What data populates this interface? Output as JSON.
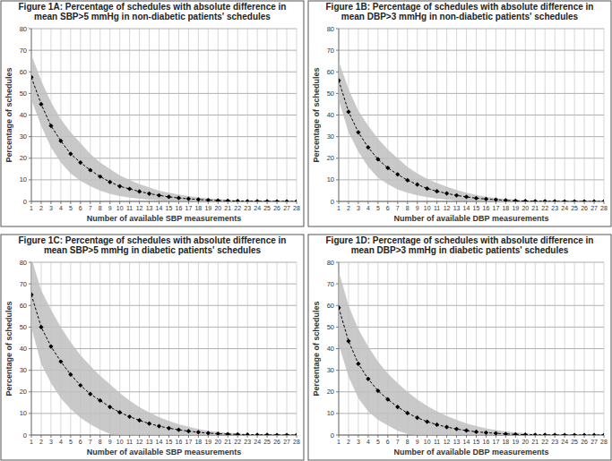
{
  "chart_data": [
    {
      "type": "line",
      "title": "Figure 1A: Percentage of schedules with absolute difference in mean SBP>5 mmHg in non-diabetic patients' schedules",
      "x_label": "Number of available SBP measurements",
      "y_label": "Percentage of schedules",
      "x": [
        1,
        2,
        3,
        4,
        5,
        6,
        7,
        8,
        9,
        10,
        11,
        12,
        13,
        14,
        15,
        16,
        17,
        18,
        19,
        20,
        21,
        22,
        23,
        24,
        25,
        26,
        27,
        28
      ],
      "xlim": [
        1,
        28
      ],
      "xticks": [
        1,
        2,
        3,
        4,
        5,
        6,
        7,
        8,
        9,
        10,
        11,
        12,
        13,
        14,
        15,
        16,
        17,
        18,
        19,
        20,
        21,
        22,
        23,
        24,
        25,
        26,
        27,
        28
      ],
      "ylim": [
        0,
        80
      ],
      "yticks": [
        0,
        10,
        20,
        30,
        40,
        50,
        60,
        70,
        80
      ],
      "grid": true,
      "series": [
        {
          "color": "#000000",
          "marker": "diamond",
          "line_style": "dashed",
          "values": [
            57.5,
            45,
            35,
            28,
            22,
            18,
            14.5,
            11.5,
            9,
            7,
            5.8,
            4.6,
            3.6,
            2.8,
            2.1,
            1.6,
            1.2,
            0.9,
            0.6,
            0.4,
            0.3,
            0.2,
            0.1,
            0.1,
            0.05,
            0,
            0,
            0
          ],
          "upper": [
            68,
            56,
            46,
            38,
            32,
            27,
            22,
            18,
            15,
            12,
            10,
            8,
            6.5,
            5,
            4,
            3.2,
            2.5,
            1.9,
            1.4,
            1,
            0.7,
            0.5,
            0.3,
            0.2,
            0.1,
            0.1,
            0,
            0
          ],
          "lower": [
            47,
            35,
            25,
            18,
            13,
            9.5,
            7,
            5,
            3.5,
            2.5,
            1.8,
            1.2,
            0.8,
            0.5,
            0.3,
            0.2,
            0.1,
            0.1,
            0,
            0,
            0,
            0,
            0,
            0,
            0,
            0,
            0,
            0
          ]
        }
      ]
    },
    {
      "type": "line",
      "title": "Figure 1B: Percentage of schedules with absolute difference in mean DBP>3 mmHg in non-diabetic patients' schedules",
      "x_label": "Number of available DBP measurements",
      "y_label": "Percentage of schedules",
      "x": [
        1,
        2,
        3,
        4,
        5,
        6,
        7,
        8,
        9,
        10,
        11,
        12,
        13,
        14,
        15,
        16,
        17,
        18,
        19,
        20,
        21,
        22,
        23,
        24,
        25,
        26,
        27,
        28
      ],
      "xlim": [
        1,
        28
      ],
      "xticks": [
        1,
        2,
        3,
        4,
        5,
        6,
        7,
        8,
        9,
        10,
        11,
        12,
        13,
        14,
        15,
        16,
        17,
        18,
        19,
        20,
        21,
        22,
        23,
        24,
        25,
        26,
        27,
        28
      ],
      "ylim": [
        0,
        80
      ],
      "yticks": [
        0,
        10,
        20,
        30,
        40,
        50,
        60,
        70,
        80
      ],
      "grid": true,
      "series": [
        {
          "color": "#000000",
          "marker": "diamond",
          "line_style": "dashed",
          "values": [
            56,
            41.5,
            32,
            25,
            19.5,
            15.5,
            12.5,
            9.8,
            7.8,
            6,
            4.7,
            3.7,
            2.8,
            2.1,
            1.5,
            1.1,
            0.8,
            0.5,
            0.3,
            0.2,
            0.1,
            0.1,
            0.05,
            0,
            0,
            0,
            0,
            0
          ],
          "upper": [
            65,
            52,
            42,
            35,
            29,
            24,
            20,
            16,
            13,
            10.5,
            8.5,
            6.8,
            5.3,
            4,
            3,
            2.2,
            1.6,
            1.1,
            0.7,
            0.4,
            0.2,
            0.1,
            0.1,
            0,
            0,
            0,
            0,
            0
          ],
          "lower": [
            47,
            32,
            23,
            16,
            11,
            8,
            5.5,
            4,
            2.8,
            2,
            1.3,
            0.8,
            0.5,
            0.3,
            0.2,
            0.1,
            0,
            0,
            0,
            0,
            0,
            0,
            0,
            0,
            0,
            0,
            0,
            0
          ]
        }
      ]
    },
    {
      "type": "line",
      "title": "Figure 1C: Percentage of schedules with absolute difference in mean SBP>5 mmHg in diabetic patients' schedules",
      "x_label": "Number of available SBP measurements",
      "y_label": "Percentage of schedules",
      "x": [
        1,
        2,
        3,
        4,
        5,
        6,
        7,
        8,
        9,
        10,
        11,
        12,
        13,
        14,
        15,
        16,
        17,
        18,
        19,
        20,
        21,
        22,
        23,
        24,
        25,
        26,
        27,
        28
      ],
      "xlim": [
        1,
        28
      ],
      "xticks": [
        1,
        2,
        3,
        4,
        5,
        6,
        7,
        8,
        9,
        10,
        11,
        12,
        13,
        14,
        15,
        16,
        17,
        18,
        19,
        20,
        21,
        22,
        23,
        24,
        25,
        26,
        27,
        28
      ],
      "ylim": [
        0,
        80
      ],
      "yticks": [
        0,
        10,
        20,
        30,
        40,
        50,
        60,
        70,
        80
      ],
      "grid": true,
      "series": [
        {
          "color": "#000000",
          "marker": "diamond",
          "line_style": "dashed",
          "values": [
            65,
            50,
            41,
            34,
            28,
            23,
            19,
            16,
            13,
            10.5,
            8.5,
            6.8,
            5.3,
            4.1,
            3.2,
            2.4,
            1.8,
            1.3,
            0.9,
            0.6,
            0.4,
            0.3,
            0.2,
            0.1,
            0.1,
            0,
            0,
            0
          ],
          "upper": [
            82,
            67,
            58,
            50,
            43,
            37,
            32,
            27.5,
            23.5,
            19.5,
            16,
            13,
            10.5,
            8.3,
            6.5,
            5,
            3.8,
            2.8,
            2,
            1.4,
            1,
            0.7,
            0.4,
            0.3,
            0.2,
            0.1,
            0,
            0
          ],
          "lower": [
            50,
            33,
            24,
            17,
            12,
            8,
            5,
            2.5,
            0.5,
            0,
            0,
            0,
            0,
            0,
            0,
            0,
            0,
            0,
            0,
            0,
            0,
            0,
            0,
            0,
            0,
            0,
            0,
            0
          ]
        }
      ]
    },
    {
      "type": "line",
      "title": "Figure 1D: Percentage of schedules with absolute difference in mean DBP>3 mmHg in diabetic patients' schedules",
      "x_label": "Number of available DBP measurements",
      "y_label": "Percentage of schedules",
      "x": [
        1,
        2,
        3,
        4,
        5,
        6,
        7,
        8,
        9,
        10,
        11,
        12,
        13,
        14,
        15,
        16,
        17,
        18,
        19,
        20,
        21,
        22,
        23,
        24,
        25,
        26,
        27,
        28
      ],
      "xlim": [
        1,
        28
      ],
      "xticks": [
        1,
        2,
        3,
        4,
        5,
        6,
        7,
        8,
        9,
        10,
        11,
        12,
        13,
        14,
        15,
        16,
        17,
        18,
        19,
        20,
        21,
        22,
        23,
        24,
        25,
        26,
        27,
        28
      ],
      "ylim": [
        0,
        80
      ],
      "yticks": [
        0,
        10,
        20,
        30,
        40,
        50,
        60,
        70,
        80
      ],
      "grid": true,
      "series": [
        {
          "color": "#000000",
          "marker": "diamond",
          "line_style": "dashed",
          "values": [
            59,
            43.5,
            33,
            26,
            20.5,
            16.5,
            13,
            10.2,
            8,
            6.2,
            4.8,
            3.7,
            2.8,
            2.1,
            1.5,
            1.1,
            0.8,
            0.5,
            0.3,
            0.2,
            0.1,
            0.1,
            0.05,
            0,
            0,
            0,
            0,
            0
          ],
          "upper": [
            76,
            60,
            49,
            41,
            34,
            28.5,
            24,
            20,
            16.5,
            13.5,
            11,
            8.8,
            7,
            5.4,
            4.1,
            3.1,
            2.3,
            1.7,
            1.2,
            0.8,
            0.5,
            0.3,
            0.2,
            0.1,
            0,
            0,
            0,
            0
          ],
          "lower": [
            42,
            27,
            17,
            11,
            7,
            4.5,
            2,
            0.5,
            0,
            0,
            0,
            0,
            0,
            0,
            0,
            0,
            0,
            0,
            0,
            0,
            0,
            0,
            0,
            0,
            0,
            0,
            0,
            0
          ]
        }
      ]
    }
  ]
}
